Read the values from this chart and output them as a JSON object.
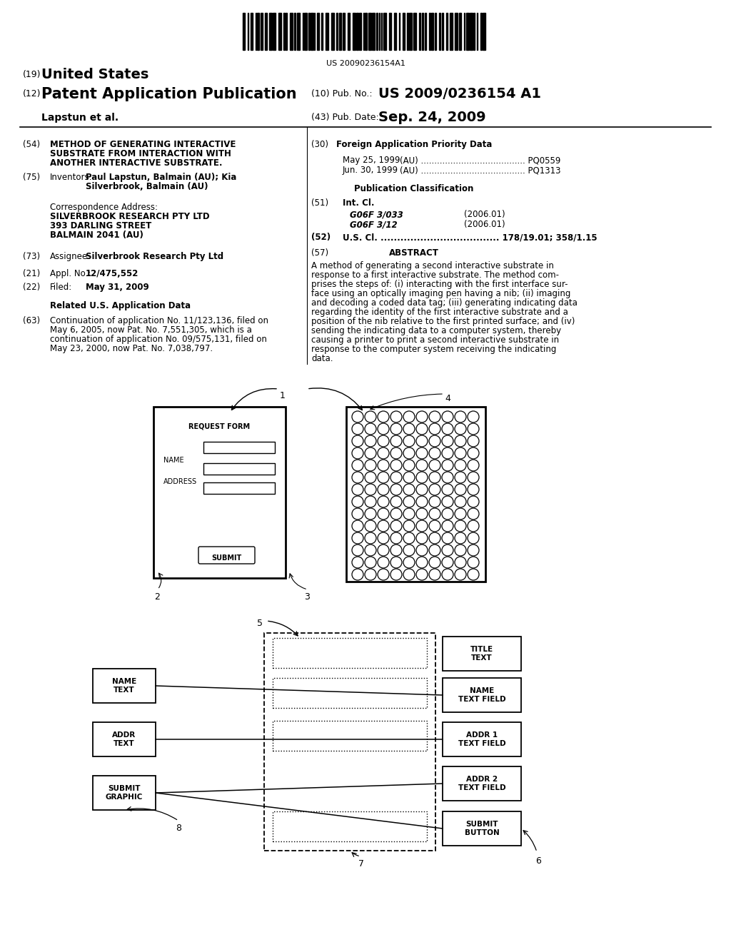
{
  "bg_color": "#ffffff",
  "barcode_text": "US 20090236154A1",
  "title_19": "(19)  United States",
  "title_12": "(12)  Patent Application Publication",
  "pub_no_label": "(10)  Pub. No.:",
  "pub_no_value": "US 2009/0236154 A1",
  "author": "Lapstun et al.",
  "pub_date_label": "(43)  Pub. Date:",
  "pub_date_value": "Sep. 24, 2009",
  "field54_label": "(54)",
  "field54_text": "METHOD OF GENERATING INTERACTIVE\nSUBSTRATE FROM INTERACTION WITH\nANOTHER INTERACTIVE SUBSTRATE.",
  "field30_label": "(30)",
  "field30_title": "Foreign Application Priority Data",
  "priority1_date": "May 25, 1999",
  "priority1_country": "(AU) ....................................... PQ0559",
  "priority2_date": "Jun. 30, 1999",
  "priority2_country": "(AU) ....................................... PQ1313",
  "field75_label": "(75)",
  "field75_title": "Inventors:",
  "field75_text1": "Paul Lapstun, Balmain (AU); Kia",
  "field75_text2": "Silverbrook, Balmain (AU)",
  "pub_class_title": "Publication Classification",
  "field51_label": "(51)",
  "field51_title": "Int. Cl.",
  "field51_class1": "G06F 3/033",
  "field51_year1": "(2006.01)",
  "field51_class2": "G06F 3/12",
  "field51_year2": "(2006.01)",
  "field52_label": "(52)",
  "field52_text": "U.S. Cl. ..................................... 178/19.01; 358/1.15",
  "field57_label": "(57)",
  "field57_title": "ABSTRACT",
  "abstract_text": "A method of generating a second interactive substrate in\nresponse to a first interactive substrate. The method com-\nprises the steps of: (i) interacting with the first interface sur-\nface using an optically imaging pen having a nib; (ii) imaging\nand decoding a coded data tag; (iii) generating indicating data\nregarding the identity of the first interactive substrate and a\nposition of the nib relative to the first printed surface; and (iv)\nsending the indicating data to a computer system, thereby\ncausing a printer to print a second interactive substrate in\nresponse to the computer system receiving the indicating\ndata.",
  "corr_addr_title": "Correspondence Address:",
  "corr_addr_line1": "SILVERBROOK RESEARCH PTY LTD",
  "corr_addr_line2": "393 DARLING STREET",
  "corr_addr_line3": "BALMAIN 2041 (AU)",
  "field73_label": "(73)",
  "field73_title": "Assignee:",
  "field73_text": "Silverbrook Research Pty Ltd",
  "field21_label": "(21)",
  "field21_title": "Appl. No.:",
  "field21_text": "12/475,552",
  "field22_label": "(22)",
  "field22_title": "Filed:",
  "field22_text": "May 31, 2009",
  "related_title": "Related U.S. Application Data",
  "field63_label": "(63)",
  "field63_text": "Continuation of application No. 11/123,136, filed on\nMay 6, 2005, now Pat. No. 7,551,305, which is a\ncontinuation of application No. 09/575,131, filed on\nMay 23, 2000, now Pat. No. 7,038,797."
}
